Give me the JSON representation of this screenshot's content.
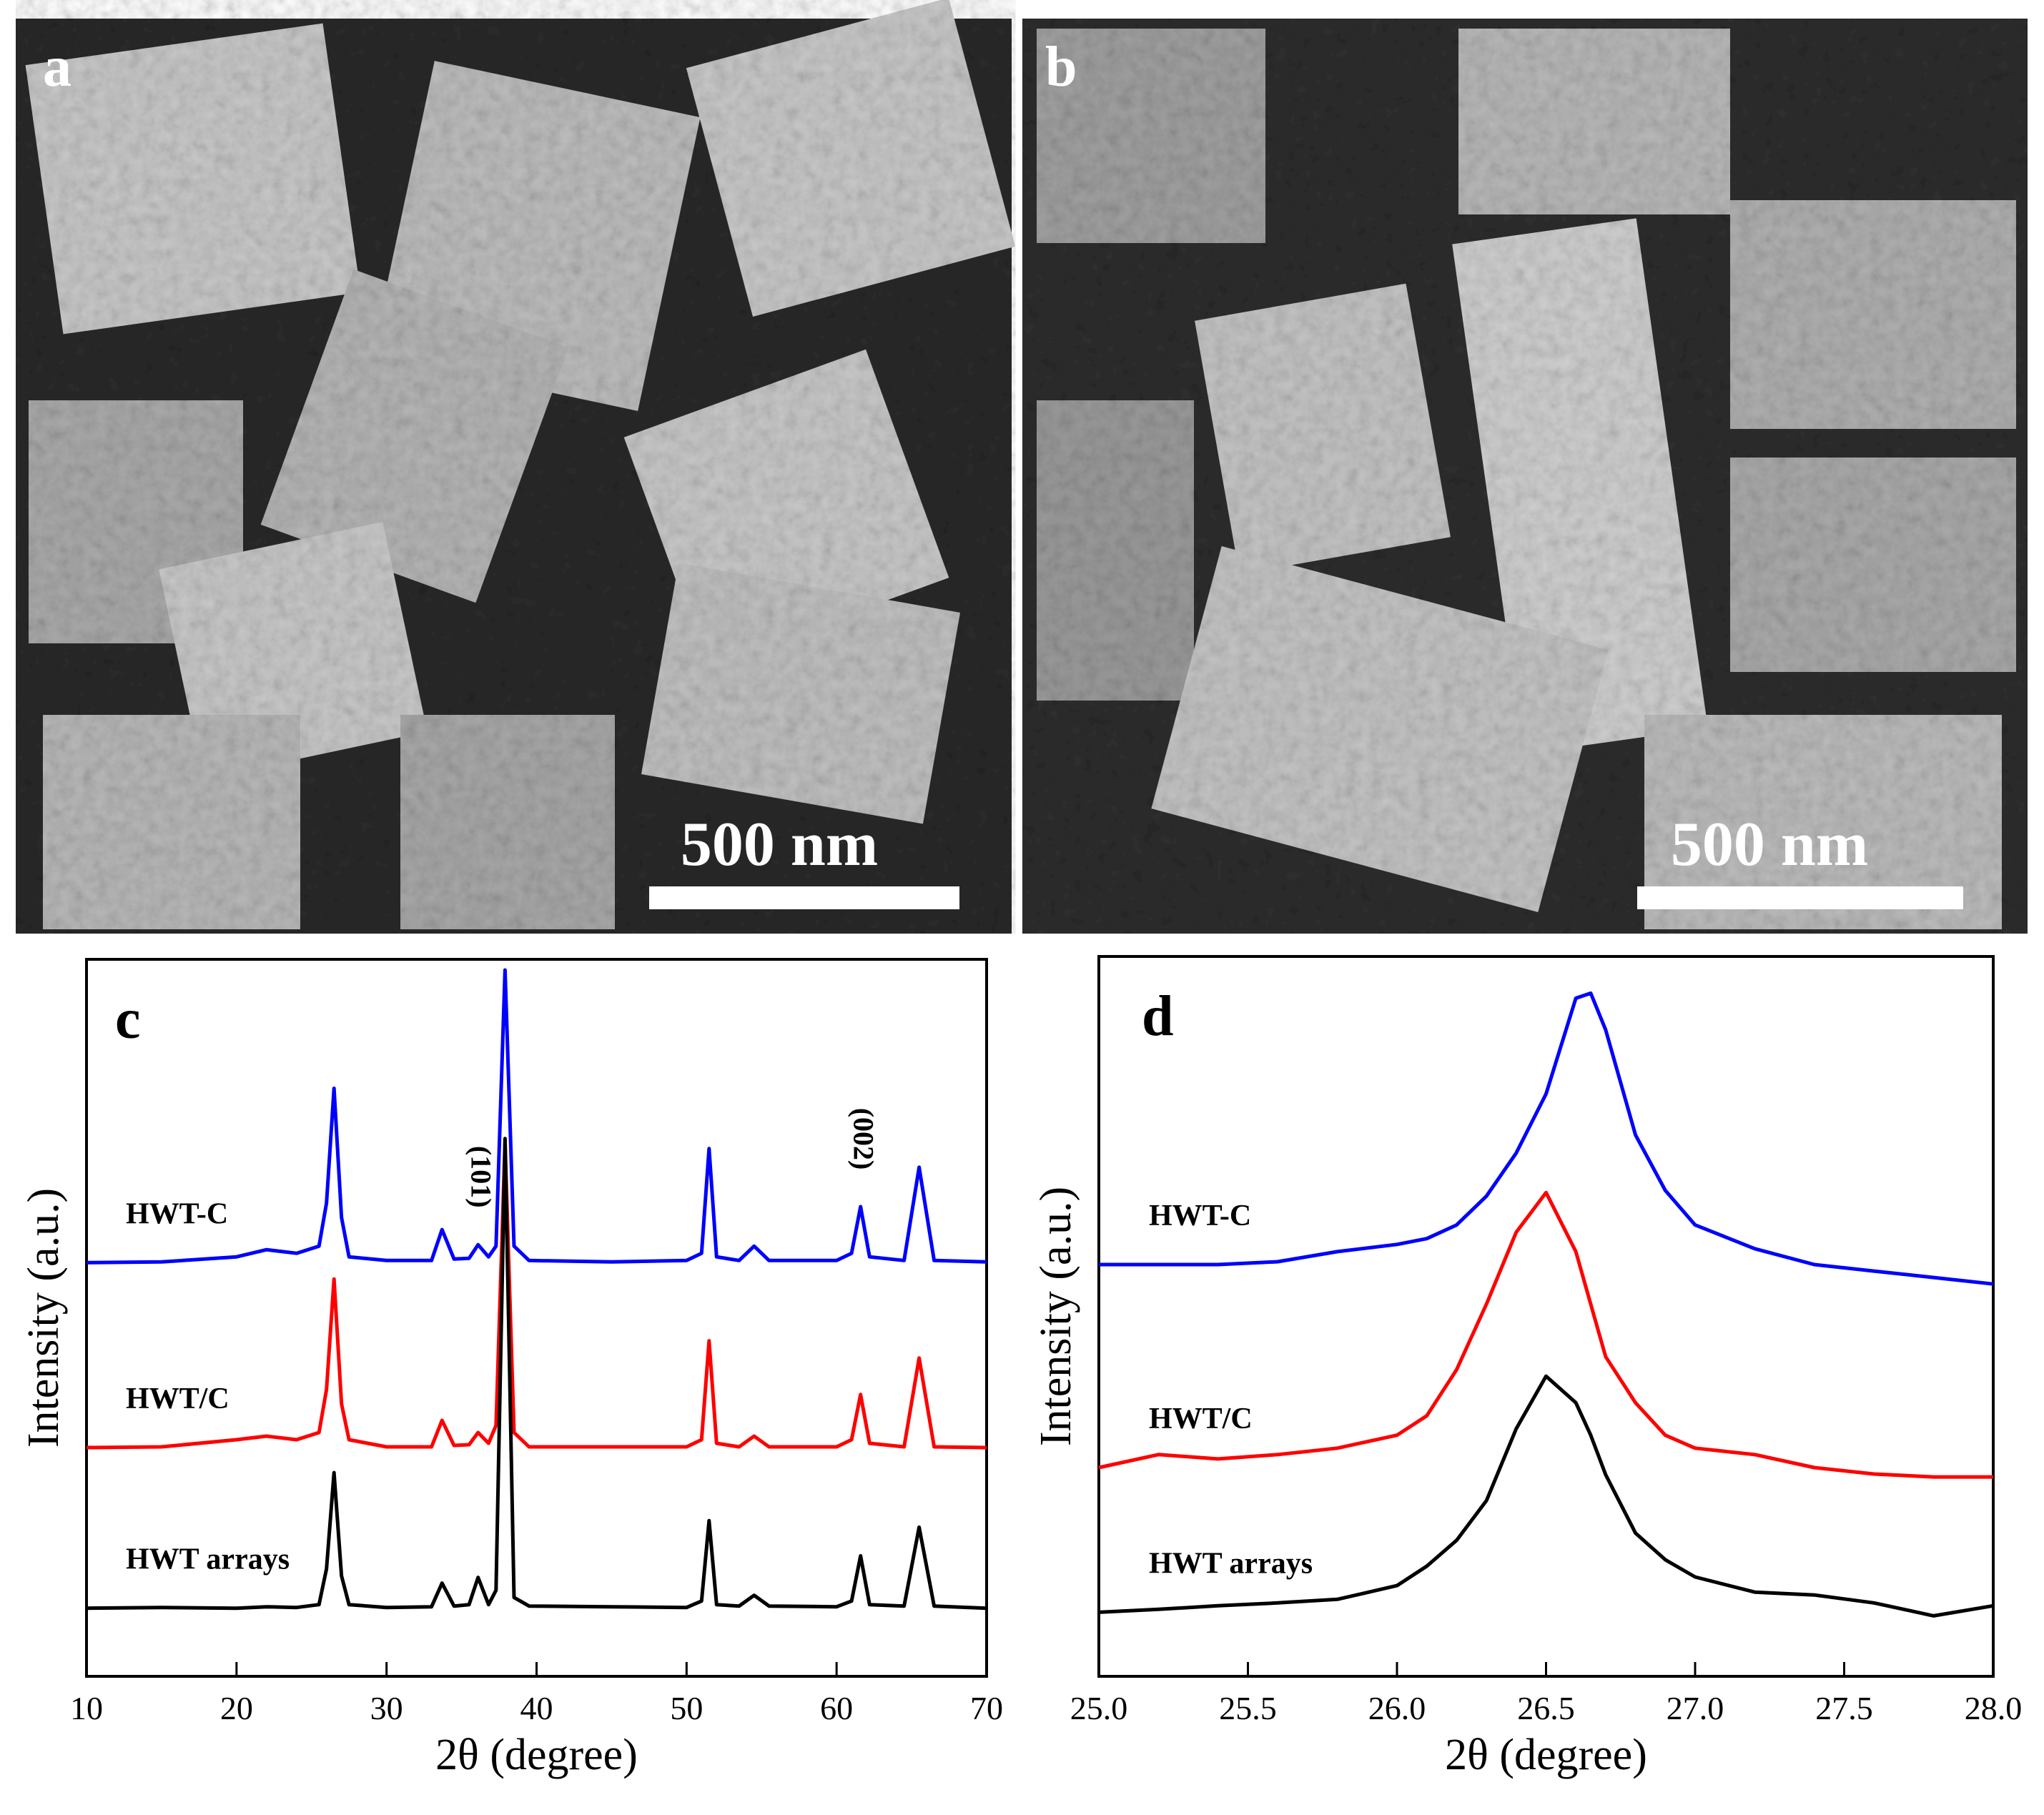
{
  "images": [
    {
      "label": "a",
      "scale_bar": "500 nm"
    },
    {
      "label": "b",
      "scale_bar": "500 nm"
    }
  ],
  "chart_data": [
    {
      "type": "line",
      "label": "c",
      "xlabel": "2θ (degree)",
      "ylabel": "Intensity (a.u.)",
      "xlim": [
        10,
        70
      ],
      "xticks": [
        10,
        20,
        30,
        40,
        50,
        60,
        70
      ],
      "ylim": [
        0,
        100
      ],
      "x": [
        10,
        15,
        20,
        22,
        24,
        25.5,
        26,
        26.5,
        27,
        27.5,
        30,
        33,
        33.7,
        34.5,
        35.5,
        36.1,
        36.8,
        37.3,
        37.9,
        38.5,
        39.5,
        45,
        50,
        51,
        51.5,
        52,
        53.5,
        54.5,
        55.5,
        60,
        61,
        61.6,
        62.2,
        64.5,
        65.5,
        66.5,
        70
      ],
      "series": [
        {
          "name": "HWT-C",
          "color": "#0000ff",
          "values": [
            57.7,
            57.8,
            58.5,
            59.5,
            59,
            60,
            66,
            82,
            64,
            58.5,
            58,
            58,
            62.3,
            58.2,
            58.3,
            60.2,
            58.5,
            60,
            98.5,
            60,
            58,
            57.8,
            58,
            59,
            73.6,
            58.5,
            58,
            60,
            58,
            58,
            59,
            65.5,
            58.5,
            58,
            71,
            58,
            57.8
          ]
        },
        {
          "name": "HWT/C",
          "color": "#ff0000",
          "values": [
            31.9,
            32,
            33,
            33.5,
            33,
            34,
            40,
            55.4,
            38,
            33,
            32,
            32,
            35.7,
            32.2,
            32.3,
            34,
            32.5,
            35,
            74.5,
            34,
            32,
            32,
            32,
            33,
            46.8,
            32.5,
            32,
            33.5,
            32,
            32,
            33,
            39.3,
            32.5,
            32,
            44.4,
            32,
            31.9
          ]
        },
        {
          "name": "HWT arrays",
          "color": "#000000",
          "values": [
            9.5,
            9.6,
            9.5,
            9.7,
            9.6,
            10,
            15,
            28.4,
            14,
            10,
            9.6,
            9.7,
            13,
            9.8,
            10,
            13.8,
            10,
            12,
            75,
            11,
            9.8,
            9.7,
            9.6,
            10.5,
            21.7,
            10,
            9.8,
            11.3,
            9.8,
            9.7,
            10.5,
            16.8,
            10,
            9.8,
            20.8,
            9.8,
            9.5
          ]
        }
      ],
      "annotations": [
        {
          "text": "(101)",
          "x": 36.1
        },
        {
          "text": "(002)",
          "x": 61.6
        }
      ]
    },
    {
      "type": "line",
      "label": "d",
      "xlabel": "2θ (degree)",
      "ylabel": "Intensity (a.u.)",
      "xlim": [
        25,
        28
      ],
      "xticks": [
        {
          "value": 25,
          "label": "25.0"
        },
        {
          "value": 25.5,
          "label": "25.5"
        },
        {
          "value": 26,
          "label": "26.0"
        },
        {
          "value": 26.5,
          "label": "26.5"
        },
        {
          "value": 27,
          "label": "27.0"
        },
        {
          "value": 27.5,
          "label": "27.5"
        },
        {
          "value": 28,
          "label": "28.0"
        }
      ],
      "ylim": [
        0,
        100
      ],
      "x": [
        25,
        25.2,
        25.4,
        25.6,
        25.8,
        26,
        26.1,
        26.2,
        26.3,
        26.4,
        26.5,
        26.6,
        26.65,
        26.7,
        26.8,
        26.9,
        27,
        27.2,
        27.4,
        27.6,
        27.8,
        28
      ],
      "series": [
        {
          "name": "HWT-C",
          "color": "#0000ff",
          "values": [
            57.2,
            57.2,
            57.2,
            57.6,
            59,
            60,
            60.8,
            62.7,
            66.7,
            72.7,
            80.9,
            94.2,
            94.9,
            89.8,
            75.2,
            67.5,
            62.7,
            59.4,
            57.2,
            56.3,
            55.4,
            54.5
          ]
        },
        {
          "name": "HWT/C",
          "color": "#ff0000",
          "values": [
            29,
            30.8,
            30.2,
            30.8,
            31.7,
            33.5,
            36.2,
            42.6,
            51.7,
            61.7,
            67.2,
            59,
            51.7,
            44.4,
            38,
            33.5,
            31.7,
            30.8,
            29,
            28.1,
            27.7,
            27.7
          ]
        },
        {
          "name": "HWT arrays",
          "color": "#000000",
          "values": [
            8.9,
            9.3,
            9.8,
            10.2,
            10.7,
            12.6,
            15.3,
            18.9,
            24.4,
            34.4,
            41.7,
            38,
            33.5,
            28,
            19.9,
            16.2,
            13.8,
            11.7,
            11.3,
            10.2,
            8.4,
            9.8
          ]
        }
      ]
    }
  ]
}
